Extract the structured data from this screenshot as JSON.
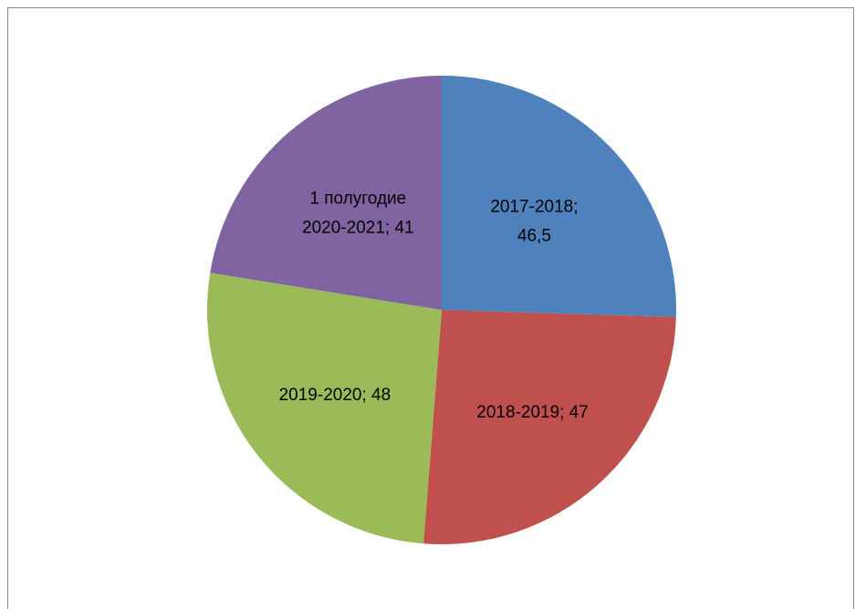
{
  "chart_data": {
    "type": "pie",
    "title": "",
    "categories": [
      "2017-2018",
      "2018-2019",
      "2019-2020",
      "1 полугодие 2020-2021"
    ],
    "values": [
      46.5,
      47,
      48,
      41
    ],
    "colors": [
      "#4f81bd",
      "#c0504d",
      "#9bbb59",
      "#8064a2"
    ],
    "data_labels": [
      [
        "2017-2018;",
        "46,5"
      ],
      [
        "2018-2019; 47"
      ],
      [
        "2019-2020; 48"
      ],
      [
        "1 полугодие",
        "2020-2021; 41"
      ]
    ],
    "legend": "none"
  }
}
